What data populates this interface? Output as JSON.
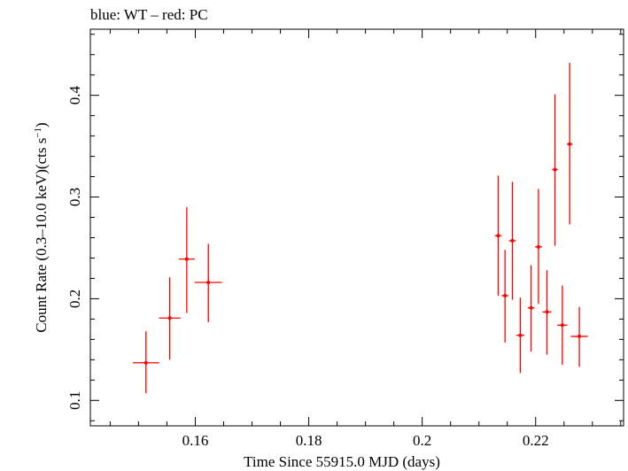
{
  "chart_data": {
    "type": "scatter",
    "title": "blue: WT – red: PC",
    "xlabel": "Time Since 55915.0 MJD (days)",
    "ylabel_main": "Count Rate (0.3–10.0 keV)(cts s",
    "ylabel_sup": "−1",
    "ylabel_close": ")",
    "xlim": [
      0.1415,
      0.2355
    ],
    "ylim": [
      0.075,
      0.465
    ],
    "x_ticks": [
      {
        "value": 0.16,
        "label": "0.16"
      },
      {
        "value": 0.18,
        "label": "0.18"
      },
      {
        "value": 0.2,
        "label": "0.2"
      },
      {
        "value": 0.22,
        "label": "0.22"
      }
    ],
    "y_ticks": [
      {
        "value": 0.1,
        "label": "0.1"
      },
      {
        "value": 0.2,
        "label": "0.2"
      },
      {
        "value": 0.3,
        "label": "0.3"
      },
      {
        "value": 0.4,
        "label": "0.4"
      }
    ],
    "series": [
      {
        "name": "PC",
        "color": "#ff0000",
        "points": [
          {
            "x": 0.1513,
            "xerr": 0.0023,
            "y": 0.137,
            "ylo": 0.107,
            "yhi": 0.168
          },
          {
            "x": 0.1555,
            "xerr": 0.0019,
            "y": 0.181,
            "ylo": 0.14,
            "yhi": 0.221
          },
          {
            "x": 0.1585,
            "xerr": 0.0014,
            "y": 0.239,
            "ylo": 0.186,
            "yhi": 0.29
          },
          {
            "x": 0.1623,
            "xerr": 0.0024,
            "y": 0.216,
            "ylo": 0.177,
            "yhi": 0.254
          },
          {
            "x": 0.2134,
            "xerr": 0.0006,
            "y": 0.262,
            "ylo": 0.203,
            "yhi": 0.321
          },
          {
            "x": 0.2146,
            "xerr": 0.0006,
            "y": 0.203,
            "ylo": 0.157,
            "yhi": 0.248
          },
          {
            "x": 0.2159,
            "xerr": 0.0006,
            "y": 0.257,
            "ylo": 0.199,
            "yhi": 0.315
          },
          {
            "x": 0.2173,
            "xerr": 0.0007,
            "y": 0.164,
            "ylo": 0.127,
            "yhi": 0.201
          },
          {
            "x": 0.2192,
            "xerr": 0.0006,
            "y": 0.191,
            "ylo": 0.148,
            "yhi": 0.233
          },
          {
            "x": 0.2205,
            "xerr": 0.0006,
            "y": 0.251,
            "ylo": 0.195,
            "yhi": 0.308
          },
          {
            "x": 0.222,
            "xerr": 0.0008,
            "y": 0.187,
            "ylo": 0.145,
            "yhi": 0.228
          },
          {
            "x": 0.2234,
            "xerr": 0.0005,
            "y": 0.327,
            "ylo": 0.252,
            "yhi": 0.401
          },
          {
            "x": 0.2247,
            "xerr": 0.0009,
            "y": 0.174,
            "ylo": 0.135,
            "yhi": 0.213
          },
          {
            "x": 0.226,
            "xerr": 0.0005,
            "y": 0.352,
            "ylo": 0.273,
            "yhi": 0.432
          },
          {
            "x": 0.2277,
            "xerr": 0.0015,
            "y": 0.163,
            "ylo": 0.133,
            "yhi": 0.192
          }
        ]
      }
    ]
  }
}
